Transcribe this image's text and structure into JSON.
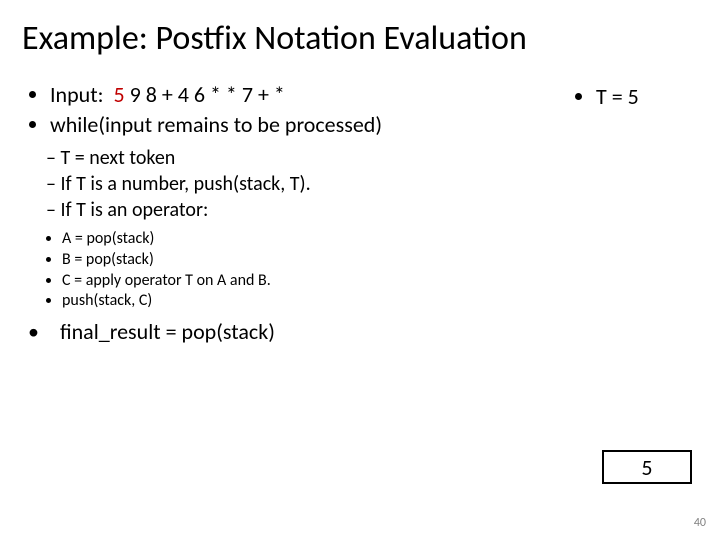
{
  "title": "Example: Postfix Notation Evaluation",
  "input_label": "Input:",
  "input_highlight": "5",
  "input_rest": "9 8 + 4 6 * * 7 + *",
  "t_equals": "T = 5",
  "while_line": "while(input remains to be processed)",
  "sub1": "T = next token",
  "sub2": "If T is a number, push(stack, T).",
  "sub3": "If T is an operator:",
  "sub3a": "A = pop(stack)",
  "sub3b": "B = pop(stack)",
  "sub3c": "C = apply operator T on A and B.",
  "sub3d": "push(stack, C)",
  "final": "final_result = pop(stack)",
  "stack_top": "5",
  "page_number": "40",
  "colors": {
    "highlight": "#c00000",
    "text": "#000000",
    "background": "#ffffff",
    "page_num": "#808080",
    "box_border": "#000000"
  }
}
